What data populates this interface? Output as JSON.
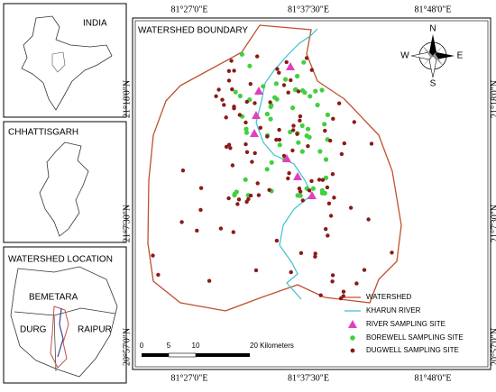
{
  "panels": {
    "india": {
      "title": "INDIA"
    },
    "state": {
      "title": "CHHATTISGARH"
    },
    "location": {
      "title": "WATERSHED LOCATION",
      "districts": [
        "BEMETARA",
        "DURG",
        "RAIPUR"
      ]
    }
  },
  "map": {
    "title": "WATERSHED BOUNDARY",
    "longitudes": [
      "81°27'0\"E",
      "81°37'30\"E",
      "81°48'0\"E"
    ],
    "latitudes": [
      "21°18'0\"N",
      "21°7'30\"N",
      "20°57'0\"N"
    ],
    "compass": {
      "n": "N",
      "s": "S",
      "e": "E",
      "w": "W"
    },
    "scale": {
      "labels": [
        "0",
        "5",
        "10",
        "20 Kilometers"
      ]
    },
    "legend": [
      "WATERSHED",
      "KHARUN RIVER",
      "RIVER SAMPLING SITE",
      "BOREWELL SAMPLING SITE",
      "DUGWELL SAMPLING SITE"
    ]
  }
}
